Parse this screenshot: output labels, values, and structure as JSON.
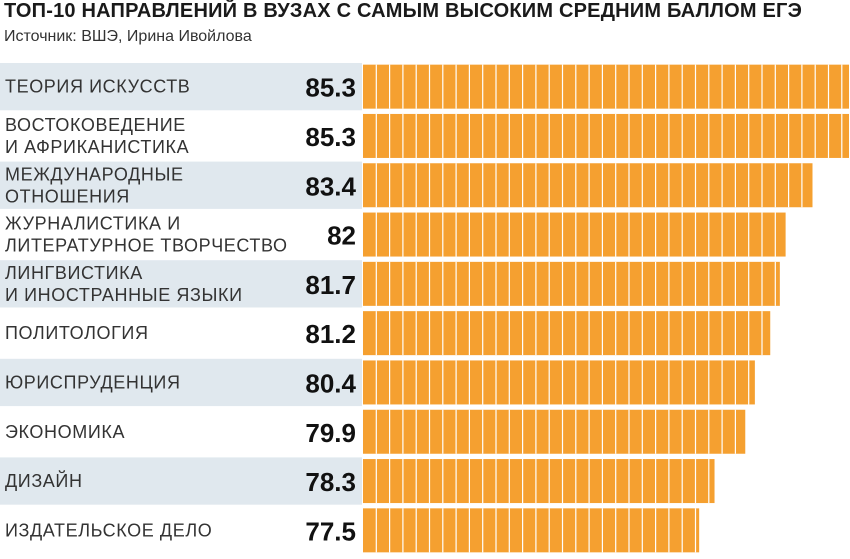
{
  "chart_data": {
    "type": "bar",
    "orientation": "horizontal",
    "title": "ТОП-10 НАПРАВЛЕНИЙ В ВУЗАХ С САМЫМ ВЫСОКИМ СРЕДНИМ БАЛЛОМ ЕГЭ",
    "source": "Источник: ВШЭ, Ирина Ивойлова",
    "categories": [
      [
        "ТЕОРИЯ ИСКУССТВ"
      ],
      [
        "ВОСТОКОВЕДЕНИЕ",
        "И АФРИКАНИСТИКА"
      ],
      [
        "МЕЖДУНАРОДНЫЕ",
        "ОТНОШЕНИЯ"
      ],
      [
        "ЖУРНАЛИСТИКА И",
        "ЛИТЕРАТУРНОЕ ТВОРЧЕСТВО"
      ],
      [
        "ЛИНГВИСТИКА",
        "И ИНОСТРАННЫЕ ЯЗЫКИ"
      ],
      [
        "ПОЛИТОЛОГИЯ"
      ],
      [
        "ЮРИСПРУДЕНЦИЯ"
      ],
      [
        "ЭКОНОМИКА"
      ],
      [
        "ДИЗАЙН"
      ],
      [
        "ИЗДАТЕЛЬСКОЕ ДЕЛО"
      ]
    ],
    "value_labels": [
      "85.3",
      "85.3",
      "83.4",
      "82",
      "81.7",
      "81.2",
      "80.4",
      "79.9",
      "78.3",
      "77.5"
    ],
    "values": [
      85.3,
      85.3,
      83.4,
      82,
      81.7,
      81.2,
      80.4,
      79.9,
      78.3,
      77.5
    ],
    "xlim": [
      60,
      85.3
    ],
    "grid": false,
    "legend": "none"
  },
  "colors": {
    "bar": "#f5a030",
    "bar_stripe": "#ffffff",
    "label_bg_odd": "#e0e8ee",
    "label_bg_even": "#ffffff"
  }
}
